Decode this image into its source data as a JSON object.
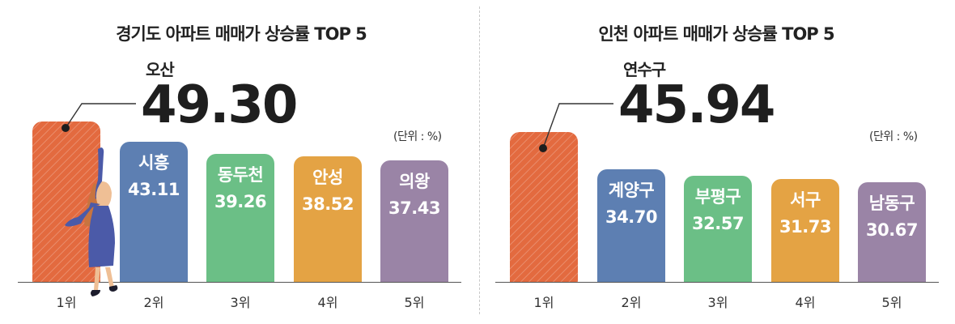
{
  "chart_data": [
    {
      "type": "bar",
      "title": "경기도 아파트 매매가 상승률 TOP 5",
      "unit": "(단위 : %)",
      "categories": [
        "오산",
        "시흥",
        "동두천",
        "안성",
        "의왕"
      ],
      "values": [
        49.3,
        43.11,
        39.26,
        38.52,
        37.43
      ],
      "value_labels": [
        "49.30",
        "43.11",
        "39.26",
        "38.52",
        "37.43"
      ],
      "ranks": [
        "1위",
        "2위",
        "3위",
        "4위",
        "5위"
      ],
      "colors": [
        "#e36a3f",
        "#5d7fb2",
        "#6bbf86",
        "#e4a344",
        "#9a84a6"
      ],
      "ylim": [
        0,
        50
      ]
    },
    {
      "type": "bar",
      "title": "인천 아파트 매매가 상승률 TOP 5",
      "unit": "(단위 : %)",
      "categories": [
        "연수구",
        "계양구",
        "부평구",
        "서구",
        "남동구"
      ],
      "values": [
        45.94,
        34.7,
        32.57,
        31.73,
        30.67
      ],
      "value_labels": [
        "45.94",
        "34.70",
        "32.57",
        "31.73",
        "30.67"
      ],
      "ranks": [
        "1위",
        "2위",
        "3위",
        "4위",
        "5위"
      ],
      "colors": [
        "#e36a3f",
        "#5d7fb2",
        "#6bbf86",
        "#e4a344",
        "#9a84a6"
      ],
      "ylim": [
        0,
        50
      ]
    }
  ]
}
